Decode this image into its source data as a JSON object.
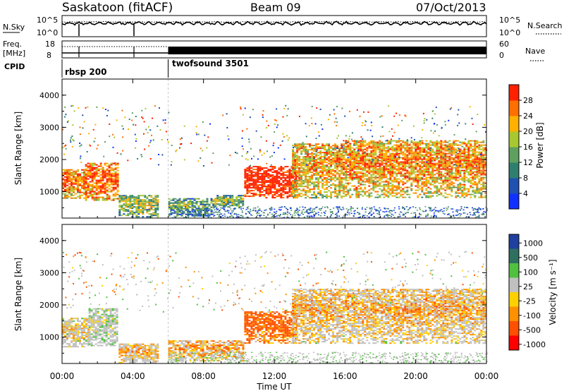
{
  "header": {
    "station": "Saskatoon (fitACF)",
    "beam": "Beam 09",
    "date": "07/Oct/2013"
  },
  "noise_panel": {
    "left_label": "N.Sky",
    "left_ticks": [
      "10^5",
      "10^0"
    ],
    "right_label": "N.Search",
    "right_ticks": [
      "10^5",
      "10^0"
    ]
  },
  "freq_panel": {
    "left_label_1": "Freq.",
    "left_label_2": "[MHz]",
    "left_ticks": [
      "18",
      "8"
    ],
    "right_label": "Nave",
    "right_ticks": [
      "60",
      "0"
    ]
  },
  "cpid": {
    "label": "CPID",
    "programs": [
      {
        "name": "rbsp 200",
        "start_hour": 0
      },
      {
        "name": "twofsound 3501",
        "start_hour": 6
      }
    ]
  },
  "chart_data": [
    {
      "type": "heatmap",
      "name": "power",
      "ylabel": "Slant Range [km]",
      "xlabel": "",
      "xlim": [
        0,
        24
      ],
      "ylim": [
        180,
        4500
      ],
      "yticks": [
        "1000",
        "2000",
        "3000",
        "4000"
      ],
      "colorbar": {
        "label": "Power [dB]",
        "range": [
          0,
          32
        ],
        "ticks": [
          "4",
          "8",
          "12",
          "16",
          "20",
          "24",
          "28"
        ],
        "colors": [
          "#1030ff",
          "#2050b0",
          "#2f7f6f",
          "#5fa060",
          "#a8c830",
          "#ffb000",
          "#ff7000",
          "#ff2000"
        ]
      },
      "bands": [
        {
          "t0": 0.0,
          "t1": 1.3,
          "r0": 800,
          "r1": 1700,
          "level": 0.65
        },
        {
          "t0": 1.3,
          "t1": 3.2,
          "r0": 700,
          "r1": 1900,
          "level": 0.7
        },
        {
          "t0": 3.2,
          "t1": 5.5,
          "r0": 200,
          "r1": 900,
          "level": 0.35
        },
        {
          "t0": 6.0,
          "t1": 8.5,
          "r0": 250,
          "r1": 800,
          "level": 0.25
        },
        {
          "t0": 8.5,
          "t1": 10.3,
          "r0": 500,
          "r1": 900,
          "level": 0.3
        },
        {
          "t0": 10.3,
          "t1": 13.3,
          "r0": 800,
          "r1": 1800,
          "level": 0.9
        },
        {
          "t0": 13.0,
          "t1": 16.0,
          "r0": 800,
          "r1": 2500,
          "level": 0.55
        },
        {
          "t0": 16.0,
          "t1": 24.0,
          "r0": 800,
          "r1": 2600,
          "level": 0.6
        }
      ]
    },
    {
      "type": "heatmap",
      "name": "velocity",
      "ylabel": "Slant Range [km]",
      "xlabel": "Time UT",
      "xlim": [
        0,
        24
      ],
      "ylim": [
        180,
        4500
      ],
      "xticks": [
        "00:00",
        "04:00",
        "08:00",
        "12:00",
        "16:00",
        "20:00",
        "00:00"
      ],
      "yticks": [
        "1000",
        "2000",
        "3000",
        "4000"
      ],
      "colorbar": {
        "label": "Velocity [m s⁻¹]",
        "ticks": [
          "1000",
          "500",
          "100",
          "25",
          "-25",
          "-100",
          "-500",
          "-1000"
        ],
        "colors": [
          "#2040a0",
          "#2f6f60",
          "#50c040",
          "#c0c0c0",
          "#ffd000",
          "#ff9000",
          "#ff5000",
          "#ff0000"
        ]
      },
      "bands": [
        {
          "t0": 0.0,
          "t1": 1.5,
          "r0": 700,
          "r1": 1600,
          "level": 0.4
        },
        {
          "t0": 1.5,
          "t1": 3.2,
          "r0": 700,
          "r1": 1900,
          "level": 0.25
        },
        {
          "t0": 3.2,
          "t1": 5.5,
          "r0": 200,
          "r1": 800,
          "level": 0.5
        },
        {
          "t0": 6.0,
          "t1": 10.3,
          "r0": 250,
          "r1": 900,
          "level": 0.55
        },
        {
          "t0": 10.3,
          "t1": 13.3,
          "r0": 800,
          "r1": 1800,
          "level": 0.8
        },
        {
          "t0": 13.0,
          "t1": 16.0,
          "r0": 800,
          "r1": 2500,
          "level": 0.5
        },
        {
          "t0": 16.0,
          "t1": 24.0,
          "r0": 800,
          "r1": 2500,
          "level": 0.5
        }
      ]
    }
  ]
}
